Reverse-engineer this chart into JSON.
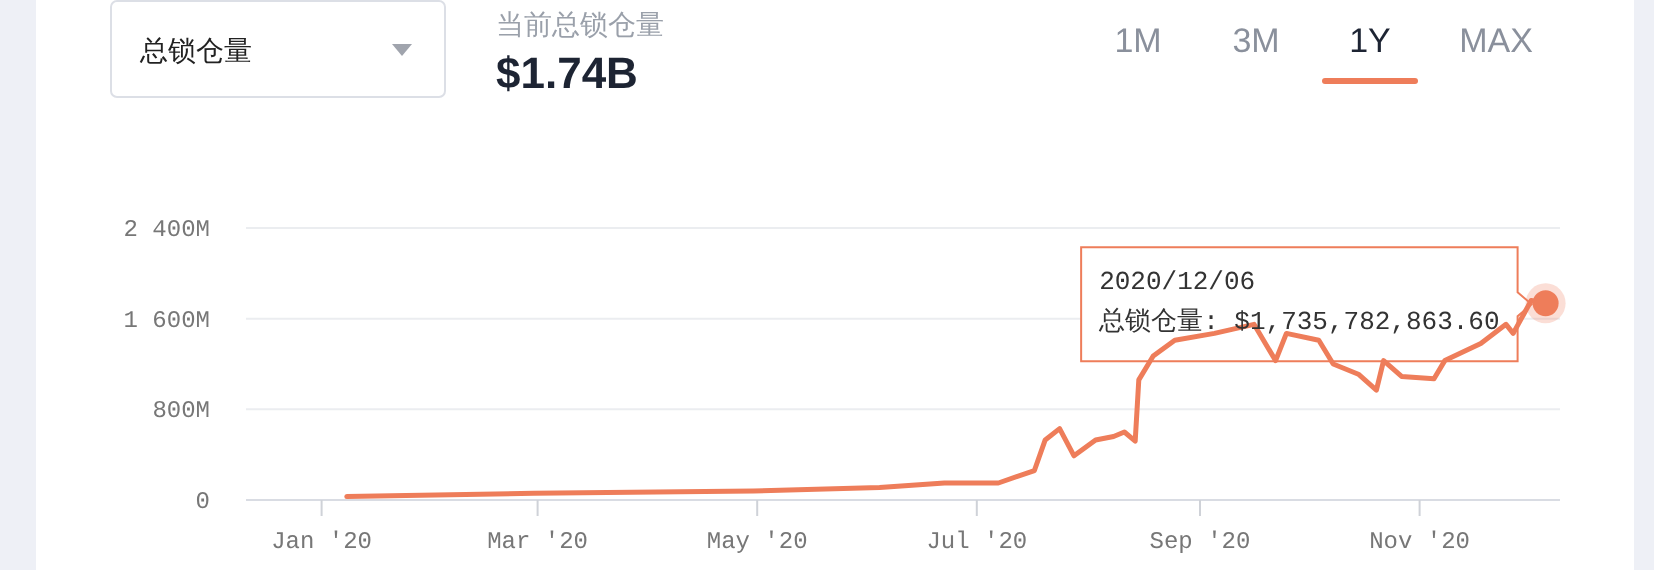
{
  "chart_data": {
    "type": "line",
    "title": "当前总锁仓量",
    "subtitle": "$1.74B",
    "annotations": [
      "总锁仓量",
      "1M",
      "3M",
      "1Y",
      "MAX",
      {
        "text": "2020/12/06\n总锁仓量: $1,735,782,863.60",
        "x": "2020-12-06",
        "y": 1735782863.6
      }
    ],
    "x": [
      "2020-01-08",
      "2020-02-29",
      "2020-04-30",
      "2020-06-04",
      "2020-06-22",
      "2020-07-07",
      "2020-07-17",
      "2020-07-20",
      "2020-07-24",
      "2020-07-28",
      "2020-08-03",
      "2020-08-08",
      "2020-08-11",
      "2020-08-14",
      "2020-08-15",
      "2020-08-19",
      "2020-08-25",
      "2020-09-05",
      "2020-09-16",
      "2020-09-22",
      "2020-09-25",
      "2020-10-04",
      "2020-10-08",
      "2020-10-15",
      "2020-10-20",
      "2020-10-22",
      "2020-10-27",
      "2020-11-05",
      "2020-11-08",
      "2020-11-18",
      "2020-11-25",
      "2020-11-27",
      "2020-12-02",
      "2020-12-06"
    ],
    "series": [
      {
        "color": "#ee7d5a",
        "values": [
          30000000,
          60000000,
          80000000,
          110000000,
          150000000,
          150000000,
          260000000,
          530000000,
          630000000,
          390000000,
          530000000,
          560000000,
          600000000,
          520000000,
          1060000000,
          1270000000,
          1410000000,
          1470000000,
          1550000000,
          1230000000,
          1470000000,
          1410000000,
          1200000000,
          1110000000,
          970000000,
          1230000000,
          1090000000,
          1070000000,
          1230000000,
          1380000000,
          1550000000,
          1470000000,
          1760000000,
          1735782863.6
        ]
      }
    ],
    "xlim": [
      "2019-12-11",
      "2020-12-10"
    ],
    "xticks": [
      {
        "value": "2020-01-01",
        "label": "Jan '20"
      },
      {
        "value": "2020-03-01",
        "label": "Mar '20"
      },
      {
        "value": "2020-05-01",
        "label": "May '20"
      },
      {
        "value": "2020-07-01",
        "label": "Jul '20"
      },
      {
        "value": "2020-09-01",
        "label": "Sep '20"
      },
      {
        "value": "2020-11-01",
        "label": "Nov '20"
      }
    ],
    "ylim": [
      0,
      2400000000
    ],
    "yticks": [
      0,
      {
        "value": 800000000,
        "label": "800M"
      },
      {
        "value": 1600000000,
        "label": "1 600M"
      },
      {
        "value": 2400000000,
        "label": "2 400M"
      }
    ],
    "grid": "y",
    "marker": "none",
    "line_style": "solid"
  }
}
